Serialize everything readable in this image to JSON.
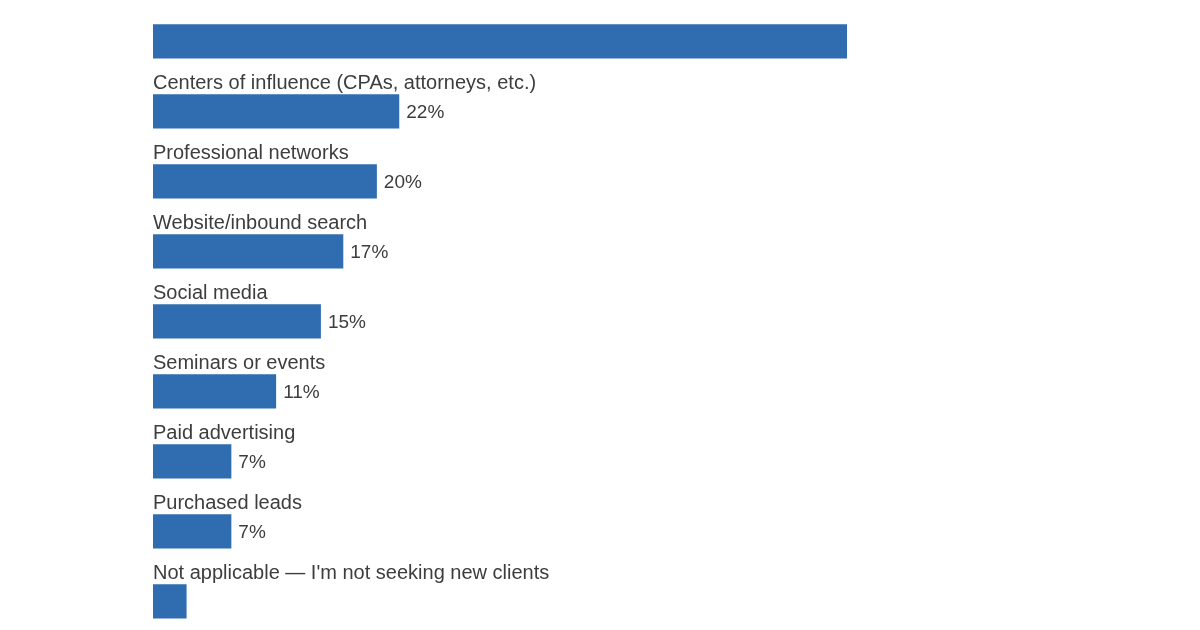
{
  "chart_data": {
    "type": "bar",
    "orientation": "horizontal",
    "color": "#2f6db0",
    "categories": [
      null,
      "Centers of influence (CPAs, attorneys, etc.)",
      "Professional networks",
      "Website/inbound search",
      "Social media",
      "Seminars or events",
      "Paid advertising",
      "Purchased leads",
      "Not applicable — I'm not seeking new clients"
    ],
    "values": [
      62,
      22,
      20,
      17,
      15,
      11,
      7,
      7,
      3
    ],
    "value_labels": [
      null,
      "22%",
      "20%",
      "17%",
      "15%",
      "11%",
      "7%",
      "7%",
      null
    ]
  }
}
